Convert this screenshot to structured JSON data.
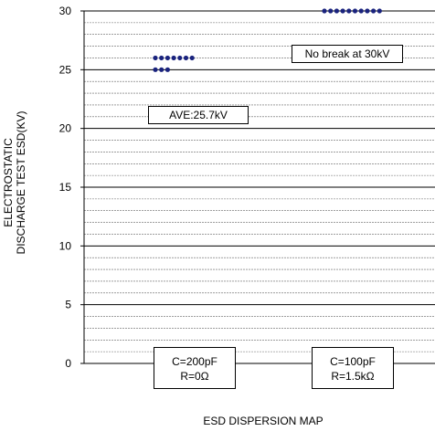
{
  "chart_data": {
    "type": "scatter",
    "title": "",
    "xlabel": "ESD DISPERSION MAP",
    "ylabel_lines": [
      "ELECTROSTATIC",
      "DISCHARGE TEST ESD(KV)"
    ],
    "ylim": [
      0,
      30
    ],
    "yticks": [
      "0",
      "5",
      "10",
      "15",
      "20",
      "25",
      "30"
    ],
    "grid": true,
    "categories": [
      {
        "label_lines": [
          "C=200pF",
          "R=0Ω"
        ]
      },
      {
        "label_lines": [
          "C=100pF",
          "R=1.5kΩ"
        ]
      }
    ],
    "series": [
      {
        "color": "#1a237e",
        "points": [
          {
            "category": 0,
            "y": 26,
            "count": 7
          },
          {
            "category": 0,
            "y": 25,
            "count": 3
          },
          {
            "category": 1,
            "y": 30,
            "count": 10
          }
        ]
      }
    ],
    "annotations": [
      {
        "text": "AVE:25.7kV"
      },
      {
        "text": "No break at 30kV"
      }
    ]
  }
}
